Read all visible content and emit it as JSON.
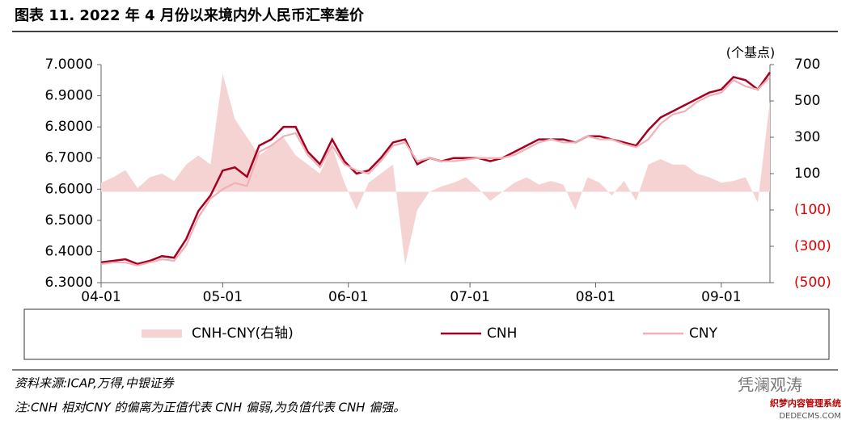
{
  "chart_data": {
    "type": "line",
    "title": "图表 11. 2022 年 4 月份以来境内外人民币汇率差价",
    "y2_axis_label": "(个基点)",
    "x": [
      0,
      3,
      6,
      9,
      12,
      15,
      18,
      21,
      24,
      27,
      30,
      33,
      36,
      39,
      42,
      45,
      48,
      51,
      54,
      57,
      60,
      63,
      66,
      69,
      72,
      75,
      78,
      81,
      84,
      87,
      90,
      93,
      96,
      99,
      102,
      105,
      108,
      111,
      114,
      117,
      120,
      123,
      126,
      129,
      132,
      135,
      138,
      141,
      144,
      147,
      150,
      153,
      156,
      159,
      162,
      165
    ],
    "xlim": [
      0,
      165
    ],
    "xticks": [
      {
        "value": 0,
        "label": "04-01"
      },
      {
        "value": 30,
        "label": "05-01"
      },
      {
        "value": 61,
        "label": "06-01"
      },
      {
        "value": 91,
        "label": "07-01"
      },
      {
        "value": 122,
        "label": "08-01"
      },
      {
        "value": 153,
        "label": "09-01"
      }
    ],
    "ylim": [
      6.3,
      7.0
    ],
    "yticks": [
      {
        "value": 6.3,
        "label": "6.3000"
      },
      {
        "value": 6.4,
        "label": "6.4000"
      },
      {
        "value": 6.5,
        "label": "6.5000"
      },
      {
        "value": 6.6,
        "label": "6.6000"
      },
      {
        "value": 6.7,
        "label": "6.7000"
      },
      {
        "value": 6.8,
        "label": "6.8000"
      },
      {
        "value": 6.9,
        "label": "6.9000"
      },
      {
        "value": 7.0,
        "label": "7.0000"
      }
    ],
    "y2lim": [
      -500,
      700
    ],
    "y2ticks": [
      {
        "value": -500,
        "label": "(500)"
      },
      {
        "value": -300,
        "label": "(300)"
      },
      {
        "value": -100,
        "label": "(100)"
      },
      100,
      300,
      500,
      700
    ],
    "negative_tick_color": "#e00000",
    "series": [
      {
        "name": "CNH-CNY(右轴)",
        "type": "area",
        "axis": "y2",
        "color": "#f6d3d3",
        "values": [
          50,
          80,
          120,
          20,
          80,
          100,
          60,
          150,
          200,
          150,
          650,
          400,
          300,
          200,
          250,
          300,
          200,
          150,
          100,
          250,
          50,
          -100,
          50,
          100,
          150,
          -400,
          -100,
          0,
          30,
          50,
          80,
          20,
          -50,
          0,
          50,
          80,
          40,
          60,
          40,
          -100,
          80,
          50,
          -20,
          60,
          -50,
          150,
          180,
          150,
          150,
          100,
          80,
          50,
          60,
          80,
          -60,
          500
        ]
      },
      {
        "name": "CNH",
        "type": "line",
        "color": "#a50021",
        "values": [
          6.365,
          6.37,
          6.375,
          6.36,
          6.37,
          6.385,
          6.38,
          6.44,
          6.53,
          6.58,
          6.66,
          6.67,
          6.64,
          6.74,
          6.76,
          6.8,
          6.8,
          6.72,
          6.68,
          6.76,
          6.69,
          6.65,
          6.66,
          6.7,
          6.75,
          6.76,
          6.68,
          6.7,
          6.69,
          6.7,
          6.7,
          6.7,
          6.69,
          6.7,
          6.72,
          6.74,
          6.76,
          6.76,
          6.76,
          6.75,
          6.77,
          6.77,
          6.76,
          6.75,
          6.74,
          6.79,
          6.83,
          6.85,
          6.87,
          6.89,
          6.91,
          6.92,
          6.96,
          6.95,
          6.92,
          6.975
        ]
      },
      {
        "name": "CNY",
        "type": "line",
        "color": "#f0b0b5",
        "values": [
          6.36,
          6.365,
          6.365,
          6.355,
          6.365,
          6.375,
          6.37,
          6.42,
          6.51,
          6.57,
          6.6,
          6.62,
          6.61,
          6.72,
          6.74,
          6.77,
          6.78,
          6.71,
          6.67,
          6.74,
          6.68,
          6.66,
          6.65,
          6.69,
          6.74,
          6.75,
          6.69,
          6.7,
          6.69,
          6.69,
          6.695,
          6.7,
          6.7,
          6.7,
          6.71,
          6.73,
          6.75,
          6.76,
          6.75,
          6.75,
          6.77,
          6.76,
          6.76,
          6.745,
          6.735,
          6.76,
          6.81,
          6.84,
          6.85,
          6.88,
          6.9,
          6.91,
          6.95,
          6.93,
          6.92,
          6.96
        ]
      }
    ],
    "source": "资料来源:ICAP,万得,中银证券",
    "note": "注:CNH 相对CNY 的偏离为正值代表 CNH 偏弱,为负值代表 CNH 偏强。",
    "watermark": "凭澜观涛",
    "watermark2": "织梦内容管理系统",
    "watermark3": "DEDECMS.COM"
  }
}
